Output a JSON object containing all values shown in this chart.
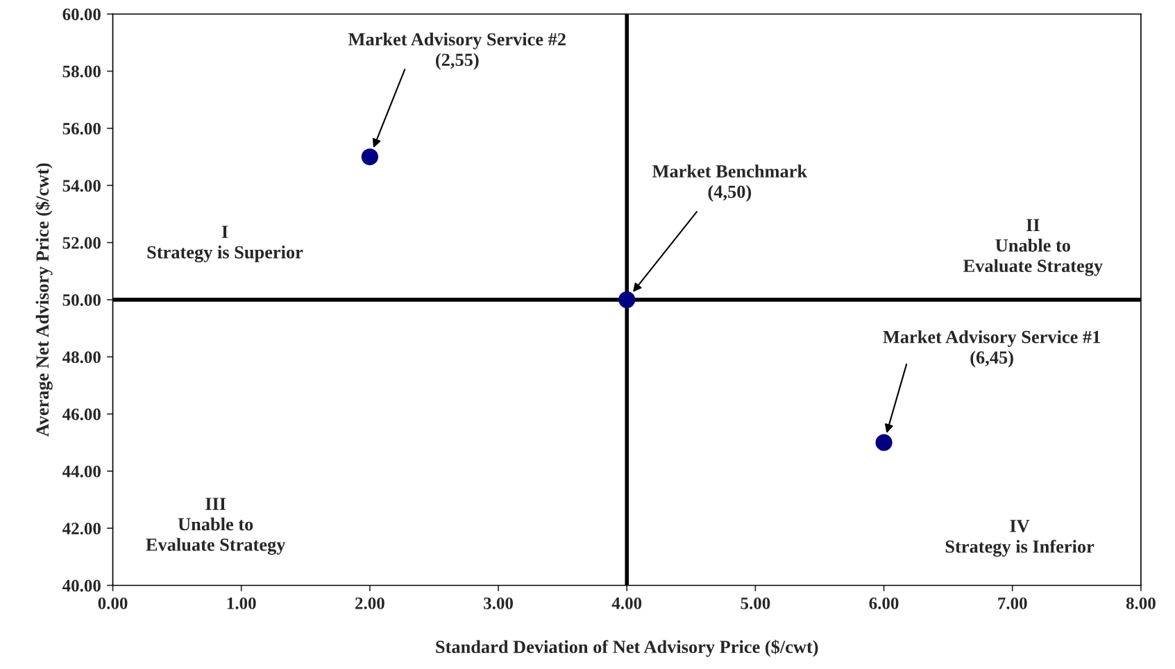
{
  "chart_data": {
    "type": "scatter",
    "xlabel": "Standard Deviation of Net Advisory Price ($/cwt)",
    "ylabel": "Average Net Advisory Price ($/cwt)",
    "x": [
      2,
      4,
      6
    ],
    "series": [
      {
        "color": "#000080",
        "values": [
          55,
          50,
          45
        ]
      }
    ],
    "marker": "circle",
    "grid": false,
    "legend": false,
    "xlim": [
      0,
      8
    ],
    "ylim": [
      40,
      60
    ],
    "xticks": [
      {
        "value": 0,
        "label": "0.00"
      },
      {
        "value": 1,
        "label": "1.00"
      },
      {
        "value": 2,
        "label": "2.00"
      },
      {
        "value": 3,
        "label": "3.00"
      },
      {
        "value": 4,
        "label": "4.00"
      },
      {
        "value": 5,
        "label": "5.00"
      },
      {
        "value": 6,
        "label": "6.00"
      },
      {
        "value": 7,
        "label": "7.00"
      },
      {
        "value": 8,
        "label": "8.00"
      }
    ],
    "yticks": [
      {
        "value": 40,
        "label": "40.00"
      },
      {
        "value": 42,
        "label": "42.00"
      },
      {
        "value": 44,
        "label": "44.00"
      },
      {
        "value": 46,
        "label": "46.00"
      },
      {
        "value": 48,
        "label": "48.00"
      },
      {
        "value": 50,
        "label": "50.00"
      },
      {
        "value": 52,
        "label": "52.00"
      },
      {
        "value": 54,
        "label": "54.00"
      },
      {
        "value": 56,
        "label": "56.00"
      },
      {
        "value": 58,
        "label": "58.00"
      },
      {
        "value": 60,
        "label": "60.00"
      }
    ],
    "ref_lines": [
      {
        "axis": "x",
        "value": 4,
        "color": "#000000",
        "line_style": "solid"
      },
      {
        "axis": "y",
        "value": 50,
        "color": "#000000",
        "line_style": "solid"
      }
    ],
    "annotations": [
      "Market Advisory Service #2\n(2,55)",
      "Market Benchmark\n(4,50)",
      "Market Advisory Service #1\n(6,45)",
      "I\nStrategy is Superior",
      "II\nUnable to\nEvaluate Strategy",
      "III\nUnable to\nEvaluate Strategy",
      "IV\nStrategy is Inferior"
    ]
  }
}
